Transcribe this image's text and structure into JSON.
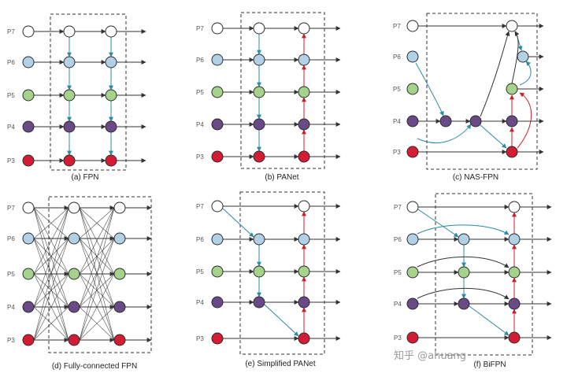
{
  "colors": {
    "white": "#ffffff",
    "blue": "#b3d1e6",
    "green": "#a6d38b",
    "purple": "#6a4a86",
    "red": "#d41c35",
    "stroke": "#2b2b2b",
    "arrow_dark": "#333333",
    "arrow_blue": "#2a8ba6",
    "arrow_red": "#c9202c",
    "box": "#333333"
  },
  "levels": [
    "P7",
    "P6",
    "P5",
    "P4",
    "P3"
  ],
  "panels": [
    {
      "id": "fpn",
      "caption": "(a) FPN"
    },
    {
      "id": "panet",
      "caption": "(b) PANet"
    },
    {
      "id": "nasfpn",
      "caption": "(c) NAS-FPN"
    },
    {
      "id": "fcfpn",
      "caption": "(d) Fully-connected FPN"
    },
    {
      "id": "spanet",
      "caption": "(e) Simplified PANet"
    },
    {
      "id": "bifpn",
      "caption": "(f) BiFPN"
    }
  ],
  "watermark": "知乎 @ahuang"
}
